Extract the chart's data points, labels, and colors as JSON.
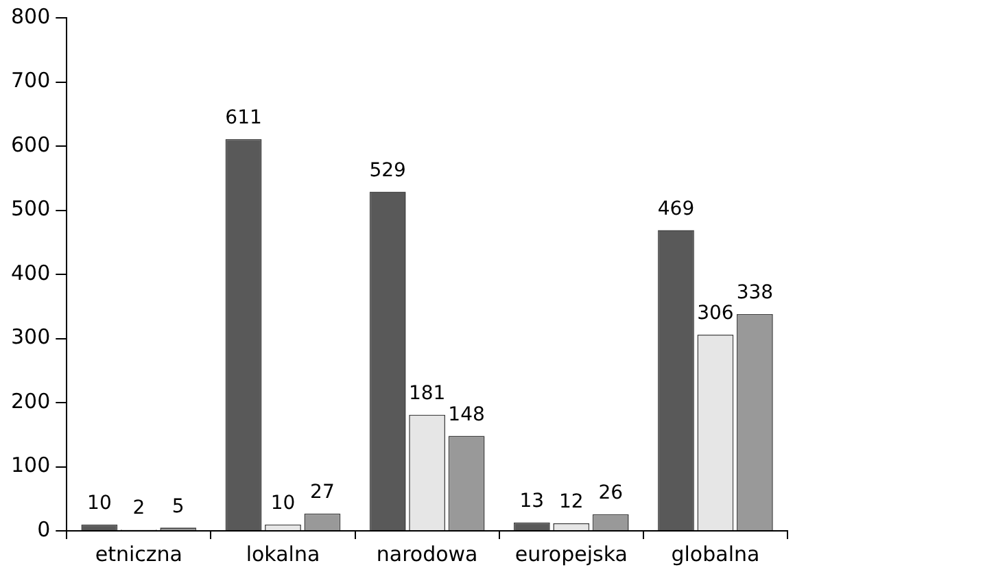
{
  "chart_data": {
    "type": "bar",
    "categories": [
      "etniczna",
      "lokalna",
      "narodowa",
      "europejska",
      "globalna"
    ],
    "series": [
      {
        "color": "#595959",
        "values": [
          10,
          611,
          529,
          13,
          469
        ]
      },
      {
        "color": "#e6e6e6",
        "values": [
          2,
          10,
          181,
          12,
          306
        ]
      },
      {
        "color": "#999999",
        "values": [
          5,
          27,
          148,
          26,
          338
        ]
      }
    ],
    "ylim": [
      0,
      800
    ],
    "yticks": [
      0,
      100,
      200,
      300,
      400,
      500,
      600,
      700,
      800
    ],
    "grid": false,
    "legend": false,
    "data_labels": true
  }
}
